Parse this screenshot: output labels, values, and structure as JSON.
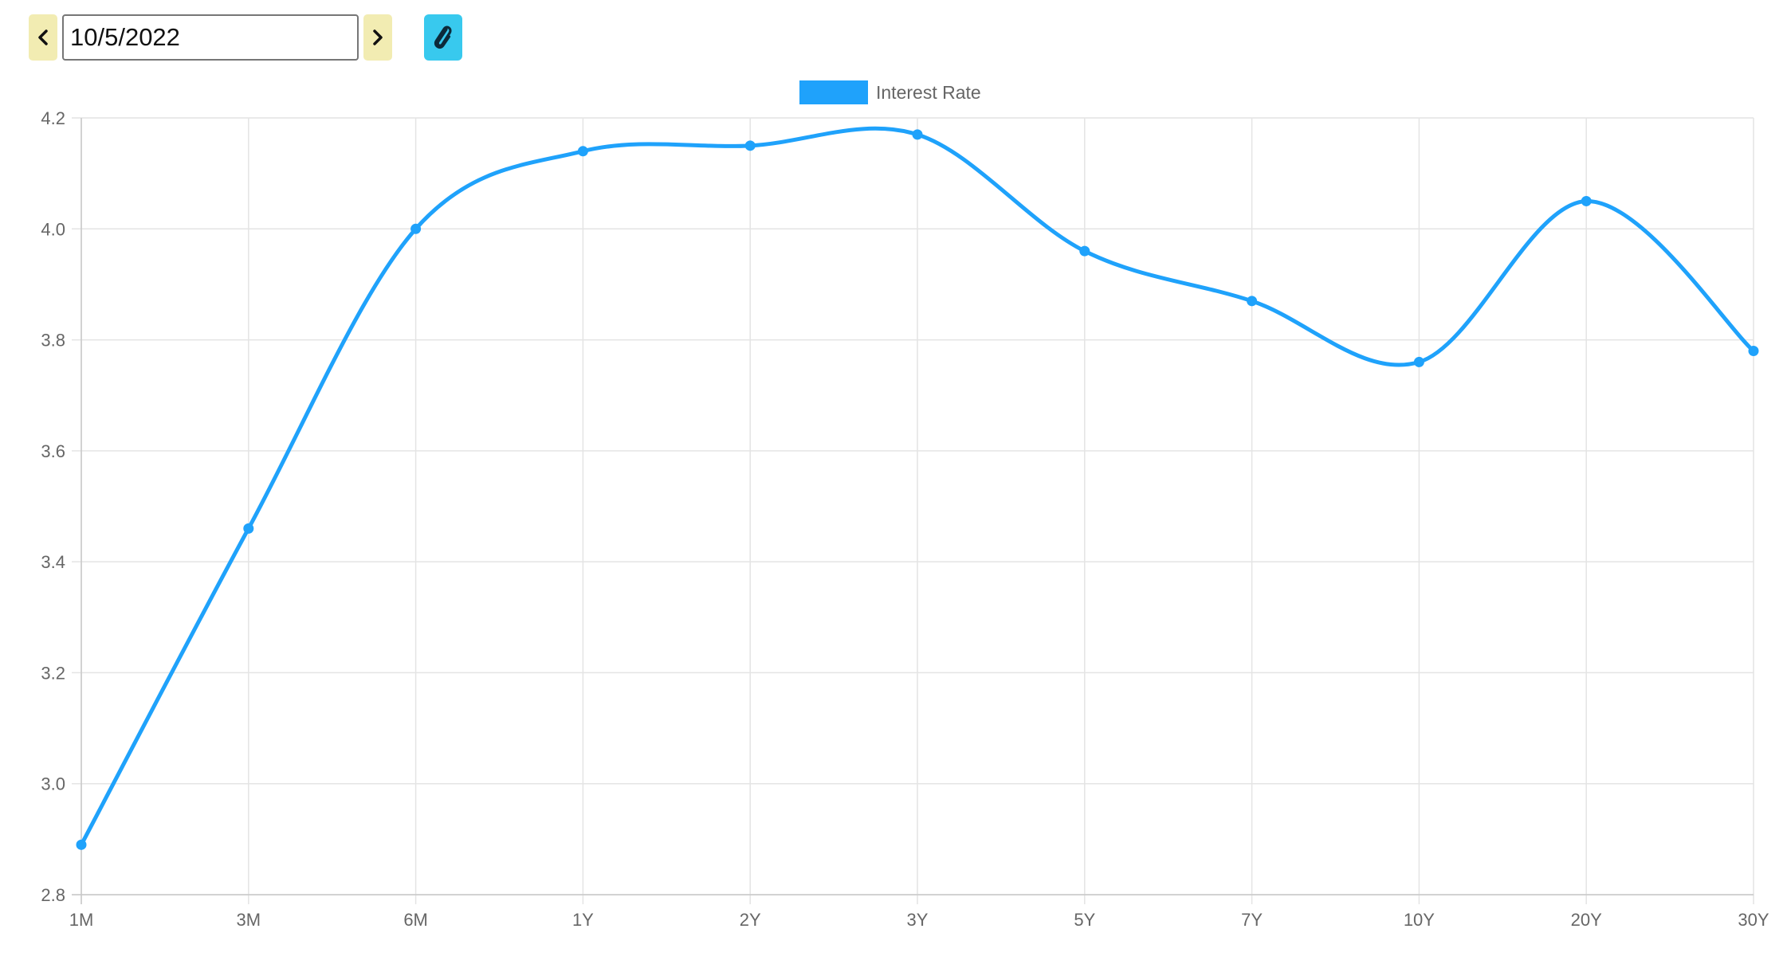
{
  "date_nav": {
    "date_value": "10/5/2022",
    "prev_icon": "chevron-left-icon",
    "next_icon": "chevron-right-icon",
    "attach_icon": "paperclip-icon"
  },
  "colors": {
    "nav_button_bg": "#f2ecb2",
    "attach_button_bg": "#38c9ee",
    "series_color": "#1fa2fb",
    "grid_color": "#e4e4e4",
    "tick_color": "#666666"
  },
  "chart_data": {
    "type": "line",
    "categories": [
      "1M",
      "3M",
      "6M",
      "1Y",
      "2Y",
      "3Y",
      "5Y",
      "7Y",
      "10Y",
      "20Y",
      "30Y"
    ],
    "series": [
      {
        "name": "Interest Rate",
        "values": [
          2.89,
          3.46,
          4.0,
          4.14,
          4.15,
          4.17,
          3.96,
          3.87,
          3.76,
          4.05,
          3.78
        ]
      }
    ],
    "ylim": [
      2.8,
      4.2
    ],
    "yticks": [
      "2.8",
      "3.0",
      "3.2",
      "3.4",
      "3.6",
      "3.8",
      "4.0",
      "4.2"
    ],
    "grid": true,
    "legend": "top-center",
    "smooth": true
  }
}
